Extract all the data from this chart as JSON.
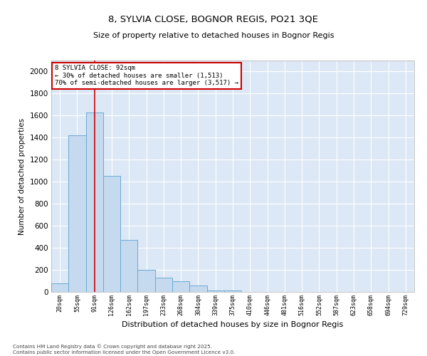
{
  "title_line1": "8, SYLVIA CLOSE, BOGNOR REGIS, PO21 3QE",
  "title_line2": "Size of property relative to detached houses in Bognor Regis",
  "xlabel": "Distribution of detached houses by size in Bognor Regis",
  "ylabel": "Number of detached properties",
  "categories": [
    "20sqm",
    "55sqm",
    "91sqm",
    "126sqm",
    "162sqm",
    "197sqm",
    "233sqm",
    "268sqm",
    "304sqm",
    "339sqm",
    "375sqm",
    "410sqm",
    "446sqm",
    "481sqm",
    "516sqm",
    "552sqm",
    "587sqm",
    "623sqm",
    "658sqm",
    "694sqm",
    "729sqm"
  ],
  "values": [
    75,
    1420,
    1630,
    1050,
    470,
    200,
    130,
    100,
    55,
    15,
    10,
    0,
    0,
    0,
    0,
    0,
    0,
    0,
    0,
    0,
    0
  ],
  "bar_color": "#c5d9ef",
  "bar_edge_color": "#6aaad4",
  "vline_x_index": 2,
  "vline_color": "#cc0000",
  "annotation_text": "8 SYLVIA CLOSE: 92sqm\n← 30% of detached houses are smaller (1,513)\n70% of semi-detached houses are larger (3,517) →",
  "annotation_box_color": "#cc0000",
  "ylim": [
    0,
    2100
  ],
  "yticks": [
    0,
    200,
    400,
    600,
    800,
    1000,
    1200,
    1400,
    1600,
    1800,
    2000
  ],
  "background_color": "#dce8f5",
  "grid_color": "#ffffff",
  "footer_line1": "Contains HM Land Registry data © Crown copyright and database right 2025.",
  "footer_line2": "Contains public sector information licensed under the Open Government Licence v3.0."
}
